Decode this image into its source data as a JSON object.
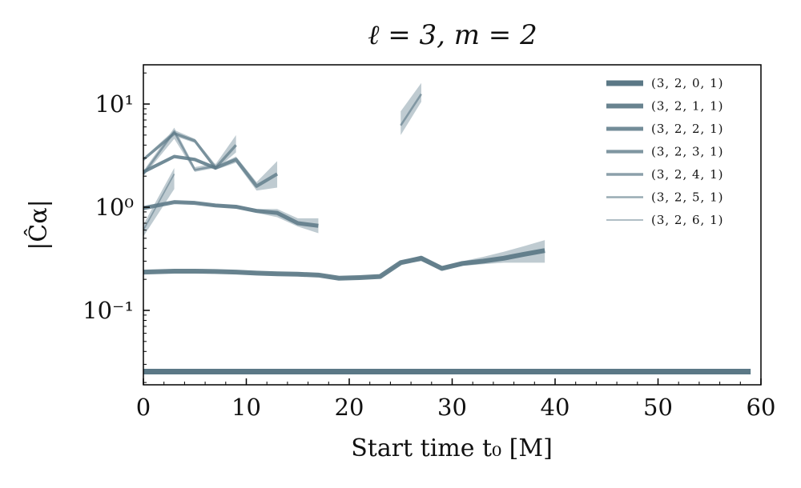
{
  "chart_data": {
    "type": "line",
    "title": "ℓ = 3, m = 2",
    "xlabel": "Start time t₀ [M]",
    "ylabel": "|Ĉα|",
    "xlim": [
      0,
      60
    ],
    "ylim": [
      0.019,
      24
    ],
    "yscale": "log",
    "grid": false,
    "legend_position": "top-right",
    "x_ticks": [
      0,
      10,
      20,
      30,
      40,
      50,
      60
    ],
    "x_tick_labels": [
      "0",
      "10",
      "20",
      "30",
      "40",
      "50",
      "60"
    ],
    "y_ticks": [
      0.1,
      1,
      10
    ],
    "y_tick_labels": [
      "10⁻¹",
      "10⁰",
      "10¹"
    ],
    "line_color": "#5b7886",
    "band_color": "#a9b9c1",
    "series": [
      {
        "name": "(3, 2, 0, 1)",
        "x": [
          0,
          59
        ],
        "y": [
          0.0255,
          0.0255
        ],
        "lower": [
          0.0255,
          0.0255
        ],
        "upper": [
          0.0255,
          0.0255
        ]
      },
      {
        "name": "(3, 2, 1, 1)",
        "x": [
          0,
          3,
          5,
          7,
          9,
          11,
          13,
          15,
          17,
          19,
          21,
          23,
          25,
          27,
          29,
          31,
          33,
          35,
          37,
          39
        ],
        "y": [
          0.235,
          0.24,
          0.24,
          0.238,
          0.235,
          0.23,
          0.226,
          0.224,
          0.22,
          0.205,
          0.208,
          0.213,
          0.29,
          0.32,
          0.255,
          0.285,
          0.3,
          0.32,
          0.35,
          0.38
        ],
        "lower": [
          0.233,
          0.238,
          0.238,
          0.236,
          0.233,
          0.228,
          0.224,
          0.222,
          0.218,
          0.202,
          0.205,
          0.21,
          0.28,
          0.3,
          0.245,
          0.27,
          0.28,
          0.29,
          0.29,
          0.29
        ],
        "upper": [
          0.237,
          0.242,
          0.242,
          0.24,
          0.237,
          0.232,
          0.228,
          0.226,
          0.222,
          0.208,
          0.211,
          0.216,
          0.3,
          0.34,
          0.265,
          0.3,
          0.33,
          0.37,
          0.42,
          0.48
        ]
      },
      {
        "name": "(3, 2, 2, 1)",
        "x": [
          0,
          3,
          5,
          7,
          9,
          11,
          13,
          15,
          17
        ],
        "y": [
          0.98,
          1.12,
          1.1,
          1.04,
          1.01,
          0.92,
          0.88,
          0.7,
          0.66
        ],
        "lower": [
          0.96,
          1.1,
          1.08,
          1.01,
          0.97,
          0.88,
          0.8,
          0.65,
          0.56
        ],
        "upper": [
          1.0,
          1.14,
          1.12,
          1.07,
          1.05,
          0.96,
          0.96,
          0.78,
          0.78
        ]
      },
      {
        "name": "(3, 2, 3, 1)",
        "x": [
          0,
          3,
          5,
          7,
          9,
          11,
          13
        ],
        "y": [
          2.2,
          3.1,
          2.9,
          2.4,
          2.9,
          1.6,
          2.1
        ],
        "lower": [
          2.1,
          3.0,
          2.8,
          2.3,
          2.7,
          1.45,
          1.55
        ],
        "upper": [
          2.3,
          3.2,
          3.0,
          2.5,
          3.1,
          1.75,
          2.8
        ]
      },
      {
        "name": "(3, 2, 4, 1)",
        "x": [
          0,
          3,
          5,
          7,
          9
        ],
        "y": [
          2.9,
          5.2,
          4.4,
          2.4,
          4.0
        ],
        "lower": [
          2.8,
          4.9,
          4.2,
          2.3,
          3.4
        ],
        "upper": [
          3.0,
          5.6,
          4.6,
          2.6,
          5.0
        ]
      },
      {
        "name": "(3, 2, 5, 1)",
        "x": [
          0,
          3,
          5,
          7
        ],
        "y": [
          2.1,
          5.4,
          2.3,
          2.5
        ],
        "lower": [
          2.0,
          4.6,
          2.2,
          2.4
        ],
        "upper": [
          2.25,
          5.9,
          2.45,
          2.65
        ],
        "extra_segments": [
          {
            "x": [
              25,
              27
            ],
            "y": [
              6.2,
              12.5
            ],
            "lower": [
              5.0,
              10.5
            ],
            "upper": [
              8.5,
              16.0
            ]
          }
        ]
      },
      {
        "name": "(3, 2, 6, 1)",
        "x": [
          0,
          3
        ],
        "y": [
          0.6,
          2.1
        ],
        "lower": [
          0.52,
          1.5
        ],
        "upper": [
          0.68,
          2.4
        ]
      }
    ]
  }
}
